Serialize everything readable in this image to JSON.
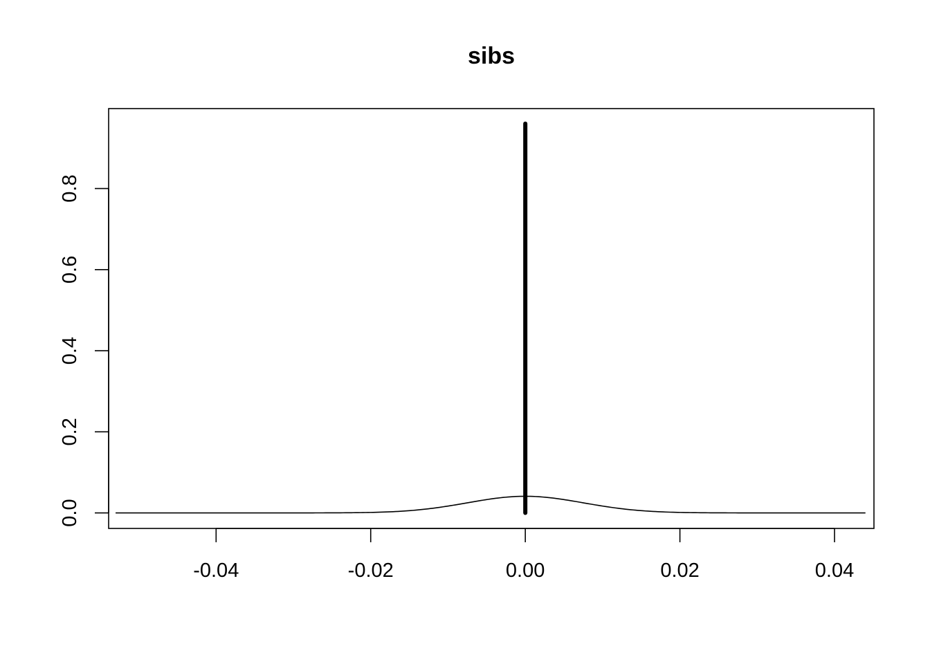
{
  "chart_data": {
    "type": "line",
    "title": "sibs",
    "xlabel": "",
    "ylabel": "",
    "xlim": [
      -0.0539,
      0.0451
    ],
    "ylim": [
      -0.0383,
      0.9971
    ],
    "x_ticks": [
      -0.04,
      -0.02,
      0.0,
      0.02,
      0.04
    ],
    "x_tick_labels": [
      "-0.04",
      "-0.02",
      "0.00",
      "0.02",
      "0.04"
    ],
    "y_ticks": [
      0.0,
      0.2,
      0.4,
      0.6,
      0.8
    ],
    "y_tick_labels": [
      "0.0",
      "0.2",
      "0.4",
      "0.6",
      "0.8"
    ],
    "grid": false,
    "series": [
      {
        "kind": "density-curve",
        "x_range": [
          -0.053,
          0.044
        ],
        "peak_x": 0.0,
        "peak_y": 0.041,
        "sd": 0.0075,
        "color": "#000000"
      },
      {
        "kind": "spike",
        "x": 0.0,
        "y_range": [
          0.0,
          0.96
        ],
        "color": "#000000"
      }
    ]
  }
}
